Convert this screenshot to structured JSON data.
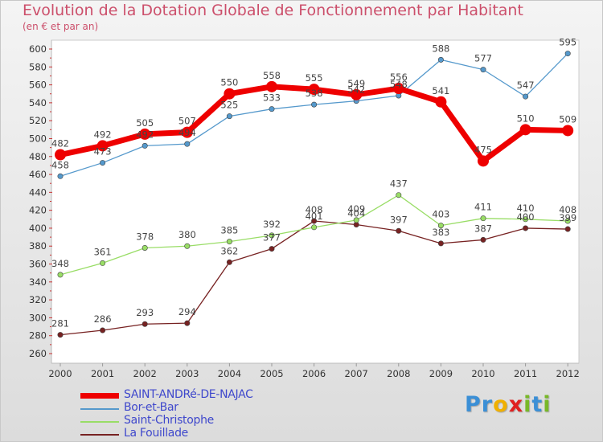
{
  "chart_data": {
    "type": "line",
    "title": "Evolution de la Dotation Globale de Fonctionnement par Habitant",
    "subtitle": "(en € et par an)",
    "xlabel": "",
    "ylabel": "",
    "ylim": [
      260,
      600
    ],
    "y_ticks": [
      260,
      280,
      300,
      320,
      340,
      360,
      380,
      400,
      420,
      440,
      460,
      480,
      500,
      520,
      540,
      560,
      580,
      600
    ],
    "x": [
      "2000",
      "2001",
      "2002",
      "2003",
      "2004",
      "2005",
      "2006",
      "2007",
      "2008",
      "2009",
      "2010",
      "2011",
      "2012"
    ],
    "series": [
      {
        "name": "SAINT-ANDRé-DE-NAJAC",
        "color": "#ee0000",
        "values": [
          482,
          492,
          505,
          507,
          550,
          558,
          555,
          549,
          556,
          541,
          475,
          510,
          509
        ]
      },
      {
        "name": "Bor-et-Bar",
        "color": "#5599cc",
        "values": [
          458,
          473,
          492,
          494,
          525,
          533,
          538,
          542,
          548,
          588,
          577,
          547,
          595
        ]
      },
      {
        "name": "Saint-Christophe",
        "color": "#99dd66",
        "values": [
          348,
          361,
          378,
          380,
          385,
          392,
          401,
          409,
          437,
          403,
          411,
          410,
          408
        ]
      },
      {
        "name": "La Fouillade",
        "color": "#772222",
        "values": [
          281,
          286,
          293,
          294,
          362,
          377,
          408,
          404,
          397,
          383,
          387,
          400,
          399
        ]
      }
    ],
    "legend_position": "bottom-left",
    "grid": false
  },
  "logo": {
    "letters": [
      "P",
      "r",
      "o",
      "x",
      "i",
      "t",
      "i"
    ],
    "colors": [
      "#3b8fd6",
      "#3b8fd6",
      "#f0b000",
      "#e02020",
      "#78b828",
      "#3b8fd6",
      "#78b828"
    ]
  }
}
